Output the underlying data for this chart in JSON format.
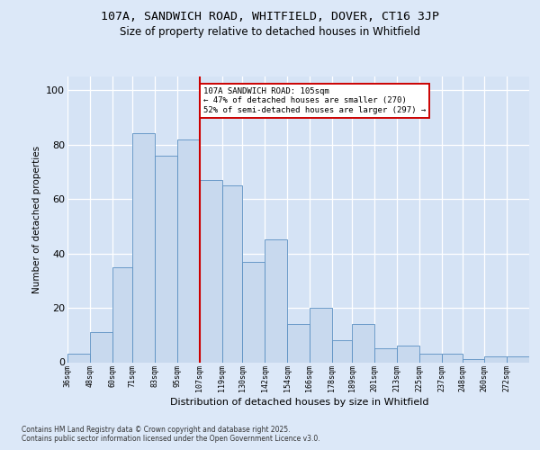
{
  "title1": "107A, SANDWICH ROAD, WHITFIELD, DOVER, CT16 3JP",
  "title2": "Size of property relative to detached houses in Whitfield",
  "xlabel": "Distribution of detached houses by size in Whitfield",
  "ylabel": "Number of detached properties",
  "footnote": "Contains HM Land Registry data © Crown copyright and database right 2025.\nContains public sector information licensed under the Open Government Licence v3.0.",
  "bin_labels": [
    "36sqm",
    "48sqm",
    "60sqm",
    "71sqm",
    "83sqm",
    "95sqm",
    "107sqm",
    "119sqm",
    "130sqm",
    "142sqm",
    "154sqm",
    "166sqm",
    "178sqm",
    "189sqm",
    "201sqm",
    "213sqm",
    "225sqm",
    "237sqm",
    "248sqm",
    "260sqm",
    "272sqm"
  ],
  "bin_edges": [
    36,
    48,
    60,
    71,
    83,
    95,
    107,
    119,
    130,
    142,
    154,
    166,
    178,
    189,
    201,
    213,
    225,
    237,
    248,
    260,
    272,
    284
  ],
  "heights": [
    3,
    11,
    35,
    84,
    76,
    82,
    67,
    65,
    37,
    45,
    14,
    20,
    8,
    14,
    5,
    6,
    3,
    3,
    1,
    2,
    2
  ],
  "bar_color": "#c8d9ee",
  "bar_edge_color": "#5a8fc2",
  "vline_x": 107,
  "vline_color": "#cc0000",
  "annotation_text": "107A SANDWICH ROAD: 105sqm\n← 47% of detached houses are smaller (270)\n52% of semi-detached houses are larger (297) →",
  "annotation_box_facecolor": "#ffffff",
  "annotation_box_edgecolor": "#cc0000",
  "ylim": [
    0,
    105
  ],
  "yticks": [
    0,
    20,
    40,
    60,
    80,
    100
  ],
  "bg_color": "#dce8f8",
  "plot_bg": "#d5e3f5",
  "figsize": [
    6.0,
    5.0
  ],
  "dpi": 100
}
